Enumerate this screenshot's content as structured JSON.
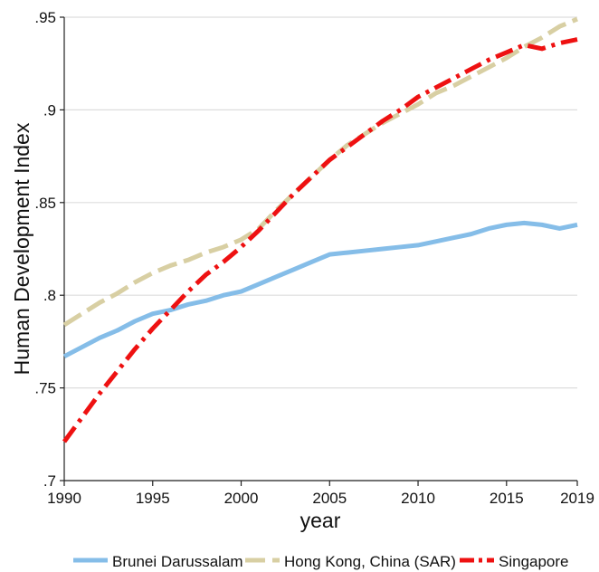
{
  "chart_data": {
    "type": "line",
    "xlabel": "year",
    "ylabel": "Human Development Index",
    "xlim": [
      1990,
      2019
    ],
    "ylim": [
      0.7,
      0.95
    ],
    "x_ticks": [
      1990,
      1995,
      2000,
      2005,
      2010,
      2015,
      2019
    ],
    "y_ticks": [
      0.7,
      0.75,
      0.8,
      0.85,
      0.9,
      0.95
    ],
    "y_tick_labels": [
      ".7",
      ".75",
      ".8",
      ".85",
      ".9",
      ".95"
    ],
    "grid": "horizontal",
    "legend_position": "bottom",
    "series": [
      {
        "name": "Brunei Darussalam",
        "color": "#85bde8",
        "line_style": "solid",
        "x": [
          1990,
          1991,
          1992,
          1993,
          1994,
          1995,
          1996,
          1997,
          1998,
          1999,
          2000,
          2001,
          2002,
          2003,
          2004,
          2005,
          2006,
          2007,
          2008,
          2009,
          2010,
          2011,
          2012,
          2013,
          2014,
          2015,
          2016,
          2017,
          2018,
          2019
        ],
        "values": [
          0.767,
          0.772,
          0.777,
          0.781,
          0.786,
          0.79,
          0.792,
          0.795,
          0.797,
          0.8,
          0.802,
          0.806,
          0.81,
          0.814,
          0.818,
          0.822,
          0.823,
          0.824,
          0.825,
          0.826,
          0.827,
          0.829,
          0.831,
          0.833,
          0.836,
          0.838,
          0.839,
          0.838,
          0.836,
          0.838
        ]
      },
      {
        "name": "Hong Kong, China (SAR)",
        "color": "#d8cfa3",
        "line_style": "dash",
        "x": [
          1990,
          1991,
          1992,
          1993,
          1994,
          1995,
          1996,
          1997,
          1998,
          1999,
          2000,
          2001,
          2002,
          2003,
          2004,
          2005,
          2006,
          2007,
          2008,
          2009,
          2010,
          2011,
          2012,
          2013,
          2014,
          2015,
          2016,
          2017,
          2018,
          2019
        ],
        "values": [
          0.784,
          0.79,
          0.796,
          0.801,
          0.807,
          0.812,
          0.816,
          0.819,
          0.823,
          0.826,
          0.83,
          0.836,
          0.846,
          0.855,
          0.864,
          0.873,
          0.881,
          0.887,
          0.893,
          0.898,
          0.903,
          0.909,
          0.913,
          0.918,
          0.923,
          0.928,
          0.934,
          0.939,
          0.945,
          0.949
        ]
      },
      {
        "name": "Singapore",
        "color": "#ee1111",
        "line_style": "dashdot",
        "x": [
          1990,
          1991,
          1992,
          1993,
          1994,
          1995,
          1996,
          1997,
          1998,
          1999,
          2000,
          2001,
          2002,
          2003,
          2004,
          2005,
          2006,
          2007,
          2008,
          2009,
          2010,
          2011,
          2012,
          2013,
          2014,
          2015,
          2016,
          2017,
          2018,
          2019
        ],
        "values": [
          0.721,
          0.734,
          0.747,
          0.759,
          0.771,
          0.782,
          0.792,
          0.802,
          0.811,
          0.818,
          0.826,
          0.835,
          0.845,
          0.855,
          0.864,
          0.873,
          0.88,
          0.887,
          0.894,
          0.9,
          0.907,
          0.912,
          0.917,
          0.922,
          0.927,
          0.931,
          0.935,
          0.933,
          0.936,
          0.938
        ]
      }
    ]
  }
}
